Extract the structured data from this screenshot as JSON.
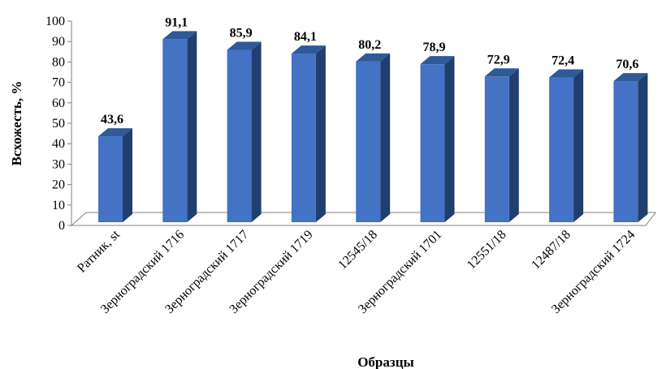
{
  "chart_data": {
    "type": "bar",
    "style": "3d-column",
    "title": "",
    "xlabel": "Образцы",
    "ylabel": "Всхожесть, %",
    "ylim": [
      0,
      100
    ],
    "yticks": [
      0,
      10,
      20,
      30,
      40,
      50,
      60,
      70,
      80,
      90,
      100
    ],
    "grid": false,
    "legend": "none",
    "categories": [
      "Ратник, st",
      "Зерноградский 1716",
      "Зерноградский 1717",
      "Зерноградский 1719",
      "12545/18",
      "Зерноградский 1701",
      "12551/18",
      "12487/18",
      "Зерноградский 1724"
    ],
    "values": [
      43.6,
      91.1,
      85.9,
      84.1,
      80.2,
      78.9,
      72.9,
      72.4,
      70.6
    ],
    "data_labels": [
      "43,6",
      "91,1",
      "85,9",
      "84,1",
      "80,2",
      "78,9",
      "72,9",
      "72,4",
      "70,6"
    ],
    "colors": {
      "bar_front": "#4472C4",
      "bar_side": "#213F6E",
      "bar_top": "#2E5A99",
      "axis": "#808080"
    }
  }
}
